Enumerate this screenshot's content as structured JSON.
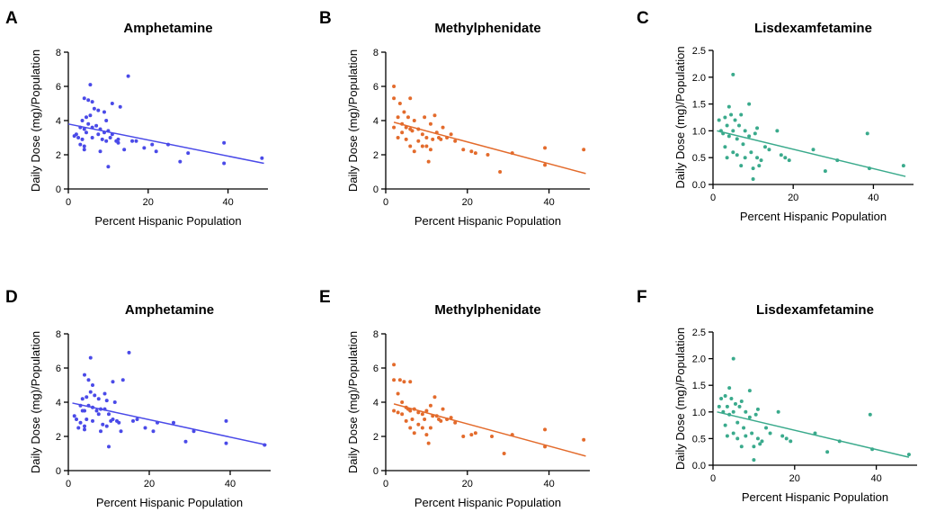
{
  "chart_data": [
    {
      "panel_label": "A",
      "type": "scatter",
      "title": "Amphetamine",
      "xlabel": "Percent Hispanic Population",
      "ylabel": "Daily Dose (mg)/Population",
      "xlim": [
        0,
        50
      ],
      "ylim": [
        0,
        8
      ],
      "xticks": [
        "0",
        "20",
        "40"
      ],
      "yticks": [
        "0",
        "2",
        "4",
        "6",
        "8"
      ],
      "xtick_values": [
        0,
        20,
        40
      ],
      "ytick_values": [
        0,
        2,
        4,
        6,
        8
      ],
      "color": "#4a4ae8",
      "trendline": [
        [
          0,
          3.8
        ],
        [
          49,
          1.5
        ]
      ],
      "points": [
        [
          1.5,
          3.1
        ],
        [
          2,
          3.2
        ],
        [
          2.5,
          3.0
        ],
        [
          3,
          3.6
        ],
        [
          3,
          2.6
        ],
        [
          3.5,
          4.0
        ],
        [
          3.5,
          2.9
        ],
        [
          4,
          5.3
        ],
        [
          4,
          3.5
        ],
        [
          4,
          2.5
        ],
        [
          4,
          2.3
        ],
        [
          4.5,
          4.2
        ],
        [
          4.5,
          3.3
        ],
        [
          5,
          5.2
        ],
        [
          5,
          3.8
        ],
        [
          5.5,
          6.1
        ],
        [
          5.5,
          4.3
        ],
        [
          6,
          5.1
        ],
        [
          6,
          3.6
        ],
        [
          6,
          3.0
        ],
        [
          6.5,
          4.7
        ],
        [
          7,
          3.7
        ],
        [
          7.5,
          4.6
        ],
        [
          7.5,
          3.2
        ],
        [
          8,
          3.5
        ],
        [
          8,
          2.2
        ],
        [
          8.5,
          2.9
        ],
        [
          9,
          4.5
        ],
        [
          9,
          3.3
        ],
        [
          9.5,
          4.0
        ],
        [
          9.5,
          2.8
        ],
        [
          10,
          3.4
        ],
        [
          10,
          1.3
        ],
        [
          10.5,
          3.0
        ],
        [
          11,
          5.0
        ],
        [
          11,
          3.2
        ],
        [
          12,
          2.8
        ],
        [
          12.5,
          2.9
        ],
        [
          12.5,
          2.7
        ],
        [
          13,
          4.8
        ],
        [
          14,
          2.3
        ],
        [
          15,
          6.6
        ],
        [
          16,
          2.8
        ],
        [
          17,
          2.8
        ],
        [
          19,
          2.4
        ],
        [
          21,
          2.6
        ],
        [
          22,
          2.2
        ],
        [
          25,
          2.6
        ],
        [
          28,
          1.6
        ],
        [
          30,
          2.1
        ],
        [
          39,
          2.7
        ],
        [
          39,
          1.5
        ],
        [
          48.5,
          1.8
        ]
      ]
    },
    {
      "panel_label": "B",
      "type": "scatter",
      "title": "Methylphenidate",
      "xlabel": "Percent Hispanic Population",
      "ylabel": "Daily Dose (mg)/Population",
      "xlim": [
        0,
        50
      ],
      "ylim": [
        0,
        8
      ],
      "xticks": [
        "0",
        "20",
        "40"
      ],
      "yticks": [
        "0",
        "2",
        "4",
        "6",
        "8"
      ],
      "xtick_values": [
        0,
        20,
        40
      ],
      "ytick_values": [
        0,
        2,
        4,
        6,
        8
      ],
      "color": "#e36b2c",
      "trendline": [
        [
          2,
          3.9
        ],
        [
          49,
          0.9
        ]
      ],
      "points": [
        [
          2,
          6.0
        ],
        [
          2,
          5.3
        ],
        [
          2,
          3.6
        ],
        [
          3,
          4.2
        ],
        [
          3,
          3.0
        ],
        [
          3.5,
          5.0
        ],
        [
          4,
          3.8
        ],
        [
          4,
          3.3
        ],
        [
          4.5,
          4.5
        ],
        [
          5,
          3.6
        ],
        [
          5,
          2.9
        ],
        [
          5.5,
          4.2
        ],
        [
          6,
          5.3
        ],
        [
          6,
          3.5
        ],
        [
          6,
          2.5
        ],
        [
          6.5,
          3.4
        ],
        [
          7,
          4.0
        ],
        [
          7,
          2.2
        ],
        [
          8,
          3.5
        ],
        [
          8,
          2.8
        ],
        [
          9,
          3.2
        ],
        [
          9,
          2.5
        ],
        [
          9.5,
          4.2
        ],
        [
          10,
          3.0
        ],
        [
          10,
          2.5
        ],
        [
          10.5,
          1.6
        ],
        [
          11,
          3.8
        ],
        [
          11,
          2.3
        ],
        [
          11.5,
          2.9
        ],
        [
          12,
          4.3
        ],
        [
          12.5,
          3.3
        ],
        [
          13,
          3.0
        ],
        [
          13.5,
          2.9
        ],
        [
          14,
          3.6
        ],
        [
          15,
          3.0
        ],
        [
          16,
          3.2
        ],
        [
          17,
          2.8
        ],
        [
          19,
          2.3
        ],
        [
          21,
          2.2
        ],
        [
          22,
          2.1
        ],
        [
          25,
          2.0
        ],
        [
          28,
          1.0
        ],
        [
          31,
          2.1
        ],
        [
          39,
          2.4
        ],
        [
          39,
          1.4
        ],
        [
          48.5,
          2.3
        ]
      ]
    },
    {
      "panel_label": "C",
      "type": "scatter",
      "title": "Lisdexamfetamine",
      "xlabel": "Percent Hispanic Population",
      "ylabel": "Daily Dose (mg)/Population",
      "xlim": [
        0,
        50
      ],
      "ylim": [
        0,
        2.5
      ],
      "xticks": [
        "0",
        "20",
        "40"
      ],
      "yticks": [
        "0.0",
        "0.5",
        "1.0",
        "1.5",
        "2.0",
        "2.5"
      ],
      "xtick_values": [
        0,
        20,
        40
      ],
      "ytick_values": [
        0,
        0.5,
        1.0,
        1.5,
        2.0,
        2.5
      ],
      "color": "#3aaa8c",
      "trendline": [
        [
          1,
          1.0
        ],
        [
          48,
          0.15
        ]
      ],
      "points": [
        [
          1.5,
          1.2
        ],
        [
          2,
          1.0
        ],
        [
          2.5,
          0.95
        ],
        [
          3,
          1.25
        ],
        [
          3,
          0.7
        ],
        [
          3.5,
          1.1
        ],
        [
          3.5,
          0.5
        ],
        [
          4,
          1.45
        ],
        [
          4,
          0.9
        ],
        [
          4.5,
          1.3
        ],
        [
          5,
          2.05
        ],
        [
          5,
          1.0
        ],
        [
          5,
          0.6
        ],
        [
          5.5,
          1.2
        ],
        [
          6,
          0.85
        ],
        [
          6,
          0.55
        ],
        [
          6.5,
          1.1
        ],
        [
          7,
          1.3
        ],
        [
          7,
          0.35
        ],
        [
          7.5,
          0.75
        ],
        [
          8,
          1.0
        ],
        [
          8,
          0.5
        ],
        [
          9,
          1.5
        ],
        [
          9,
          0.9
        ],
        [
          9.5,
          0.6
        ],
        [
          10,
          0.3
        ],
        [
          10,
          0.1
        ],
        [
          10.5,
          0.95
        ],
        [
          11,
          1.05
        ],
        [
          11,
          0.5
        ],
        [
          11.5,
          0.35
        ],
        [
          12,
          0.45
        ],
        [
          13,
          0.7
        ],
        [
          14,
          0.65
        ],
        [
          16,
          1.0
        ],
        [
          17,
          0.55
        ],
        [
          18,
          0.5
        ],
        [
          19,
          0.45
        ],
        [
          25,
          0.65
        ],
        [
          28,
          0.25
        ],
        [
          31,
          0.45
        ],
        [
          38.5,
          0.95
        ],
        [
          39,
          0.3
        ],
        [
          47.5,
          0.35
        ]
      ]
    },
    {
      "panel_label": "D",
      "type": "scatter",
      "title": "Amphetamine",
      "xlabel": "Percent Hispanic Population",
      "ylabel": "Daily Dose (mg)/Population",
      "xlim": [
        0,
        50
      ],
      "ylim": [
        0,
        8
      ],
      "xticks": [
        "0",
        "20",
        "40"
      ],
      "yticks": [
        "0",
        "2",
        "4",
        "6",
        "8"
      ],
      "xtick_values": [
        0,
        20,
        40
      ],
      "ytick_values": [
        0,
        2,
        4,
        6,
        8
      ],
      "color": "#4a4ae8",
      "trendline": [
        [
          1,
          3.95
        ],
        [
          49,
          1.5
        ]
      ],
      "points": [
        [
          1.5,
          3.2
        ],
        [
          2,
          3.0
        ],
        [
          2.5,
          2.5
        ],
        [
          3,
          3.8
        ],
        [
          3,
          2.8
        ],
        [
          3.5,
          4.2
        ],
        [
          3.5,
          3.5
        ],
        [
          4,
          5.6
        ],
        [
          4,
          3.5
        ],
        [
          4,
          2.6
        ],
        [
          4,
          2.4
        ],
        [
          4.5,
          4.3
        ],
        [
          4.5,
          3.0
        ],
        [
          5,
          5.3
        ],
        [
          5,
          3.8
        ],
        [
          5.5,
          6.6
        ],
        [
          5.5,
          4.6
        ],
        [
          6,
          5.0
        ],
        [
          6,
          3.7
        ],
        [
          6,
          2.9
        ],
        [
          6.5,
          4.4
        ],
        [
          7,
          3.5
        ],
        [
          7.5,
          4.2
        ],
        [
          7.5,
          3.3
        ],
        [
          8,
          3.6
        ],
        [
          8,
          2.3
        ],
        [
          8.5,
          2.7
        ],
        [
          9,
          4.5
        ],
        [
          9,
          3.6
        ],
        [
          9.5,
          4.1
        ],
        [
          9.5,
          2.6
        ],
        [
          10,
          3.3
        ],
        [
          10,
          1.4
        ],
        [
          10.5,
          2.9
        ],
        [
          11,
          5.2
        ],
        [
          11,
          3.0
        ],
        [
          11.5,
          4.0
        ],
        [
          12,
          2.9
        ],
        [
          12.5,
          2.8
        ],
        [
          13,
          2.3
        ],
        [
          13.5,
          5.3
        ],
        [
          15,
          6.9
        ],
        [
          16,
          2.9
        ],
        [
          17,
          3.0
        ],
        [
          19,
          2.5
        ],
        [
          21,
          2.3
        ],
        [
          22,
          2.8
        ],
        [
          26,
          2.8
        ],
        [
          29,
          1.7
        ],
        [
          31,
          2.3
        ],
        [
          39,
          2.9
        ],
        [
          39,
          1.6
        ],
        [
          48.5,
          1.5
        ]
      ]
    },
    {
      "panel_label": "E",
      "type": "scatter",
      "title": "Methylphenidate",
      "xlabel": "Percent Hispanic Population",
      "ylabel": "Daily Dose (mg)/Population",
      "xlim": [
        0,
        50
      ],
      "ylim": [
        0,
        8
      ],
      "xticks": [
        "0",
        "20",
        "40"
      ],
      "yticks": [
        "0",
        "2",
        "4",
        "6",
        "8"
      ],
      "xtick_values": [
        0,
        20,
        40
      ],
      "ytick_values": [
        0,
        2,
        4,
        6,
        8
      ],
      "color": "#e36b2c",
      "trendline": [
        [
          2,
          3.9
        ],
        [
          49,
          0.85
        ]
      ],
      "points": [
        [
          2,
          6.2
        ],
        [
          2,
          5.3
        ],
        [
          2,
          3.5
        ],
        [
          3,
          4.5
        ],
        [
          3,
          3.4
        ],
        [
          3.5,
          5.3
        ],
        [
          4,
          4.0
        ],
        [
          4,
          3.3
        ],
        [
          4.5,
          5.2
        ],
        [
          5,
          3.7
        ],
        [
          5,
          2.9
        ],
        [
          5.5,
          3.6
        ],
        [
          6,
          5.2
        ],
        [
          6,
          3.5
        ],
        [
          6,
          2.5
        ],
        [
          6.5,
          3.0
        ],
        [
          7,
          3.6
        ],
        [
          7,
          2.2
        ],
        [
          8,
          3.4
        ],
        [
          8,
          2.7
        ],
        [
          9,
          3.3
        ],
        [
          9,
          2.5
        ],
        [
          9.5,
          3.0
        ],
        [
          10,
          3.5
        ],
        [
          10,
          2.1
        ],
        [
          10.5,
          1.6
        ],
        [
          11,
          3.8
        ],
        [
          11,
          2.5
        ],
        [
          11.5,
          3.2
        ],
        [
          12,
          4.3
        ],
        [
          12.5,
          3.2
        ],
        [
          13,
          3.0
        ],
        [
          13.5,
          2.9
        ],
        [
          14,
          3.6
        ],
        [
          15,
          3.0
        ],
        [
          16,
          3.1
        ],
        [
          17,
          2.8
        ],
        [
          19,
          2.0
        ],
        [
          21,
          2.1
        ],
        [
          22,
          2.2
        ],
        [
          26,
          2.0
        ],
        [
          29,
          1.0
        ],
        [
          31,
          2.1
        ],
        [
          39,
          2.4
        ],
        [
          39,
          1.4
        ],
        [
          48.5,
          1.8
        ]
      ]
    },
    {
      "panel_label": "F",
      "type": "scatter",
      "title": "Lisdexamfetamine",
      "xlabel": "Percent Hispanic Population",
      "ylabel": "Daily Dose (mg)/Population",
      "xlim": [
        0,
        50
      ],
      "ylim": [
        0,
        2.5
      ],
      "xticks": [
        "0",
        "20",
        "40"
      ],
      "yticks": [
        "0.0",
        "0.5",
        "1.0",
        "1.5",
        "2.0",
        "2.5"
      ],
      "xtick_values": [
        0,
        20,
        40
      ],
      "ytick_values": [
        0,
        0.5,
        1.0,
        1.5,
        2.0,
        2.5
      ],
      "color": "#3aaa8c",
      "trendline": [
        [
          1,
          1.0
        ],
        [
          48,
          0.15
        ]
      ],
      "points": [
        [
          1.5,
          1.1
        ],
        [
          2,
          1.25
        ],
        [
          2.5,
          1.0
        ],
        [
          3,
          1.3
        ],
        [
          3,
          0.75
        ],
        [
          3.5,
          1.1
        ],
        [
          3.5,
          0.55
        ],
        [
          4,
          1.45
        ],
        [
          4,
          0.95
        ],
        [
          4.5,
          1.25
        ],
        [
          5,
          2.0
        ],
        [
          5,
          1.0
        ],
        [
          5,
          0.6
        ],
        [
          5.5,
          1.15
        ],
        [
          6,
          0.8
        ],
        [
          6,
          0.5
        ],
        [
          6.5,
          1.1
        ],
        [
          7,
          1.2
        ],
        [
          7,
          0.35
        ],
        [
          7.5,
          0.7
        ],
        [
          8,
          1.0
        ],
        [
          8,
          0.55
        ],
        [
          9,
          1.4
        ],
        [
          9,
          0.9
        ],
        [
          9.5,
          0.6
        ],
        [
          10,
          0.35
        ],
        [
          10,
          0.1
        ],
        [
          10.5,
          0.95
        ],
        [
          11,
          1.05
        ],
        [
          11,
          0.5
        ],
        [
          11.5,
          0.4
        ],
        [
          12,
          0.45
        ],
        [
          13,
          0.7
        ],
        [
          14,
          0.6
        ],
        [
          16,
          1.0
        ],
        [
          17,
          0.55
        ],
        [
          18,
          0.5
        ],
        [
          19,
          0.45
        ],
        [
          25,
          0.6
        ],
        [
          28,
          0.25
        ],
        [
          31,
          0.45
        ],
        [
          38.5,
          0.95
        ],
        [
          39,
          0.3
        ],
        [
          48,
          0.2
        ]
      ]
    }
  ]
}
